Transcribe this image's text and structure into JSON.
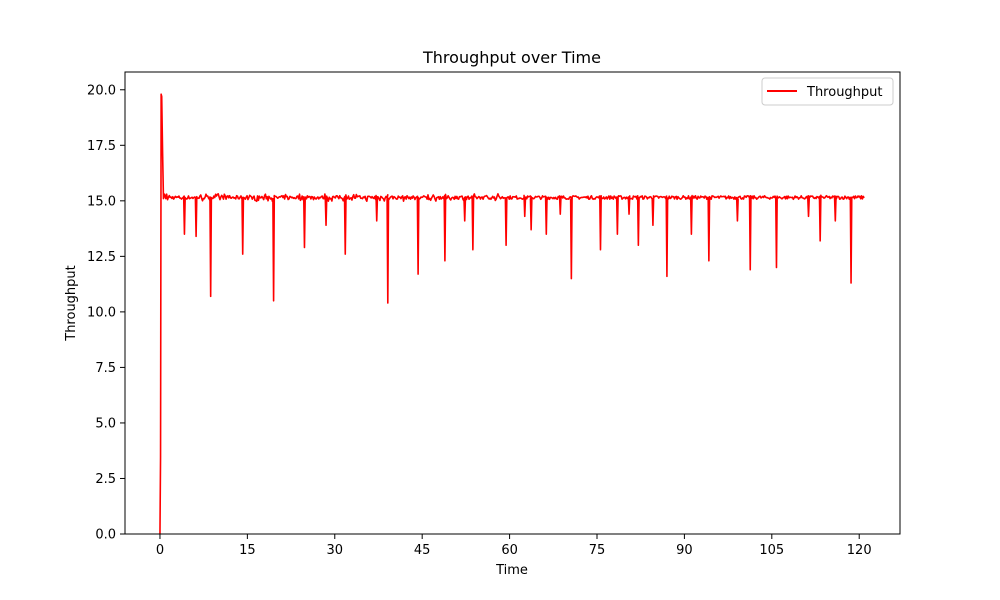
{
  "chart_data": {
    "type": "line",
    "title": "Throughput over Time",
    "xlabel": "Time",
    "ylabel": "Throughput",
    "xlim": [
      -6,
      127
    ],
    "ylim": [
      0,
      20.8
    ],
    "xticks": [
      0,
      15,
      30,
      45,
      60,
      75,
      90,
      105,
      120
    ],
    "xtick_labels": [
      "0",
      "15",
      "30",
      "45",
      "60",
      "75",
      "90",
      "105",
      "120"
    ],
    "yticks": [
      0,
      2.5,
      5,
      7.5,
      10,
      12.5,
      15,
      17.5,
      20
    ],
    "ytick_labels": [
      "0.0",
      "2.5",
      "5.0",
      "7.5",
      "10.0",
      "12.5",
      "15.0",
      "17.5",
      "20.0"
    ],
    "grid": false,
    "legend_position": "top-right",
    "series": [
      {
        "name": "Throughput",
        "color": "#ff0000",
        "baseline": 15.15,
        "start": {
          "x": [
            0,
            0.1,
            0.2,
            0.3,
            0.45,
            0.6,
            0.8,
            1.0
          ],
          "y": [
            0.0,
            3.5,
            19.8,
            19.7,
            17.2,
            15.1,
            15.3,
            15.1
          ]
        },
        "end_x": 121,
        "dips": [
          {
            "x": 4.2,
            "y": 13.5
          },
          {
            "x": 6.2,
            "y": 13.4
          },
          {
            "x": 8.7,
            "y": 10.7
          },
          {
            "x": 14.2,
            "y": 12.6
          },
          {
            "x": 19.5,
            "y": 10.5
          },
          {
            "x": 24.8,
            "y": 12.9
          },
          {
            "x": 28.5,
            "y": 13.9
          },
          {
            "x": 31.8,
            "y": 12.6
          },
          {
            "x": 37.2,
            "y": 14.1
          },
          {
            "x": 39.1,
            "y": 10.4
          },
          {
            "x": 44.3,
            "y": 11.7
          },
          {
            "x": 48.9,
            "y": 12.3
          },
          {
            "x": 52.3,
            "y": 14.1
          },
          {
            "x": 53.7,
            "y": 12.8
          },
          {
            "x": 59.4,
            "y": 13.0
          },
          {
            "x": 62.6,
            "y": 14.3
          },
          {
            "x": 63.7,
            "y": 13.7
          },
          {
            "x": 66.3,
            "y": 13.5
          },
          {
            "x": 68.7,
            "y": 14.4
          },
          {
            "x": 70.6,
            "y": 11.5
          },
          {
            "x": 75.6,
            "y": 12.8
          },
          {
            "x": 78.5,
            "y": 13.5
          },
          {
            "x": 80.5,
            "y": 14.4
          },
          {
            "x": 82.1,
            "y": 13.0
          },
          {
            "x": 84.6,
            "y": 13.9
          },
          {
            "x": 87.0,
            "y": 11.6
          },
          {
            "x": 91.2,
            "y": 13.5
          },
          {
            "x": 94.2,
            "y": 12.3
          },
          {
            "x": 99.1,
            "y": 14.1
          },
          {
            "x": 101.3,
            "y": 11.9
          },
          {
            "x": 105.8,
            "y": 12.0
          },
          {
            "x": 111.3,
            "y": 14.3
          },
          {
            "x": 113.3,
            "y": 13.2
          },
          {
            "x": 115.9,
            "y": 14.1
          },
          {
            "x": 118.6,
            "y": 11.3
          }
        ]
      }
    ]
  }
}
